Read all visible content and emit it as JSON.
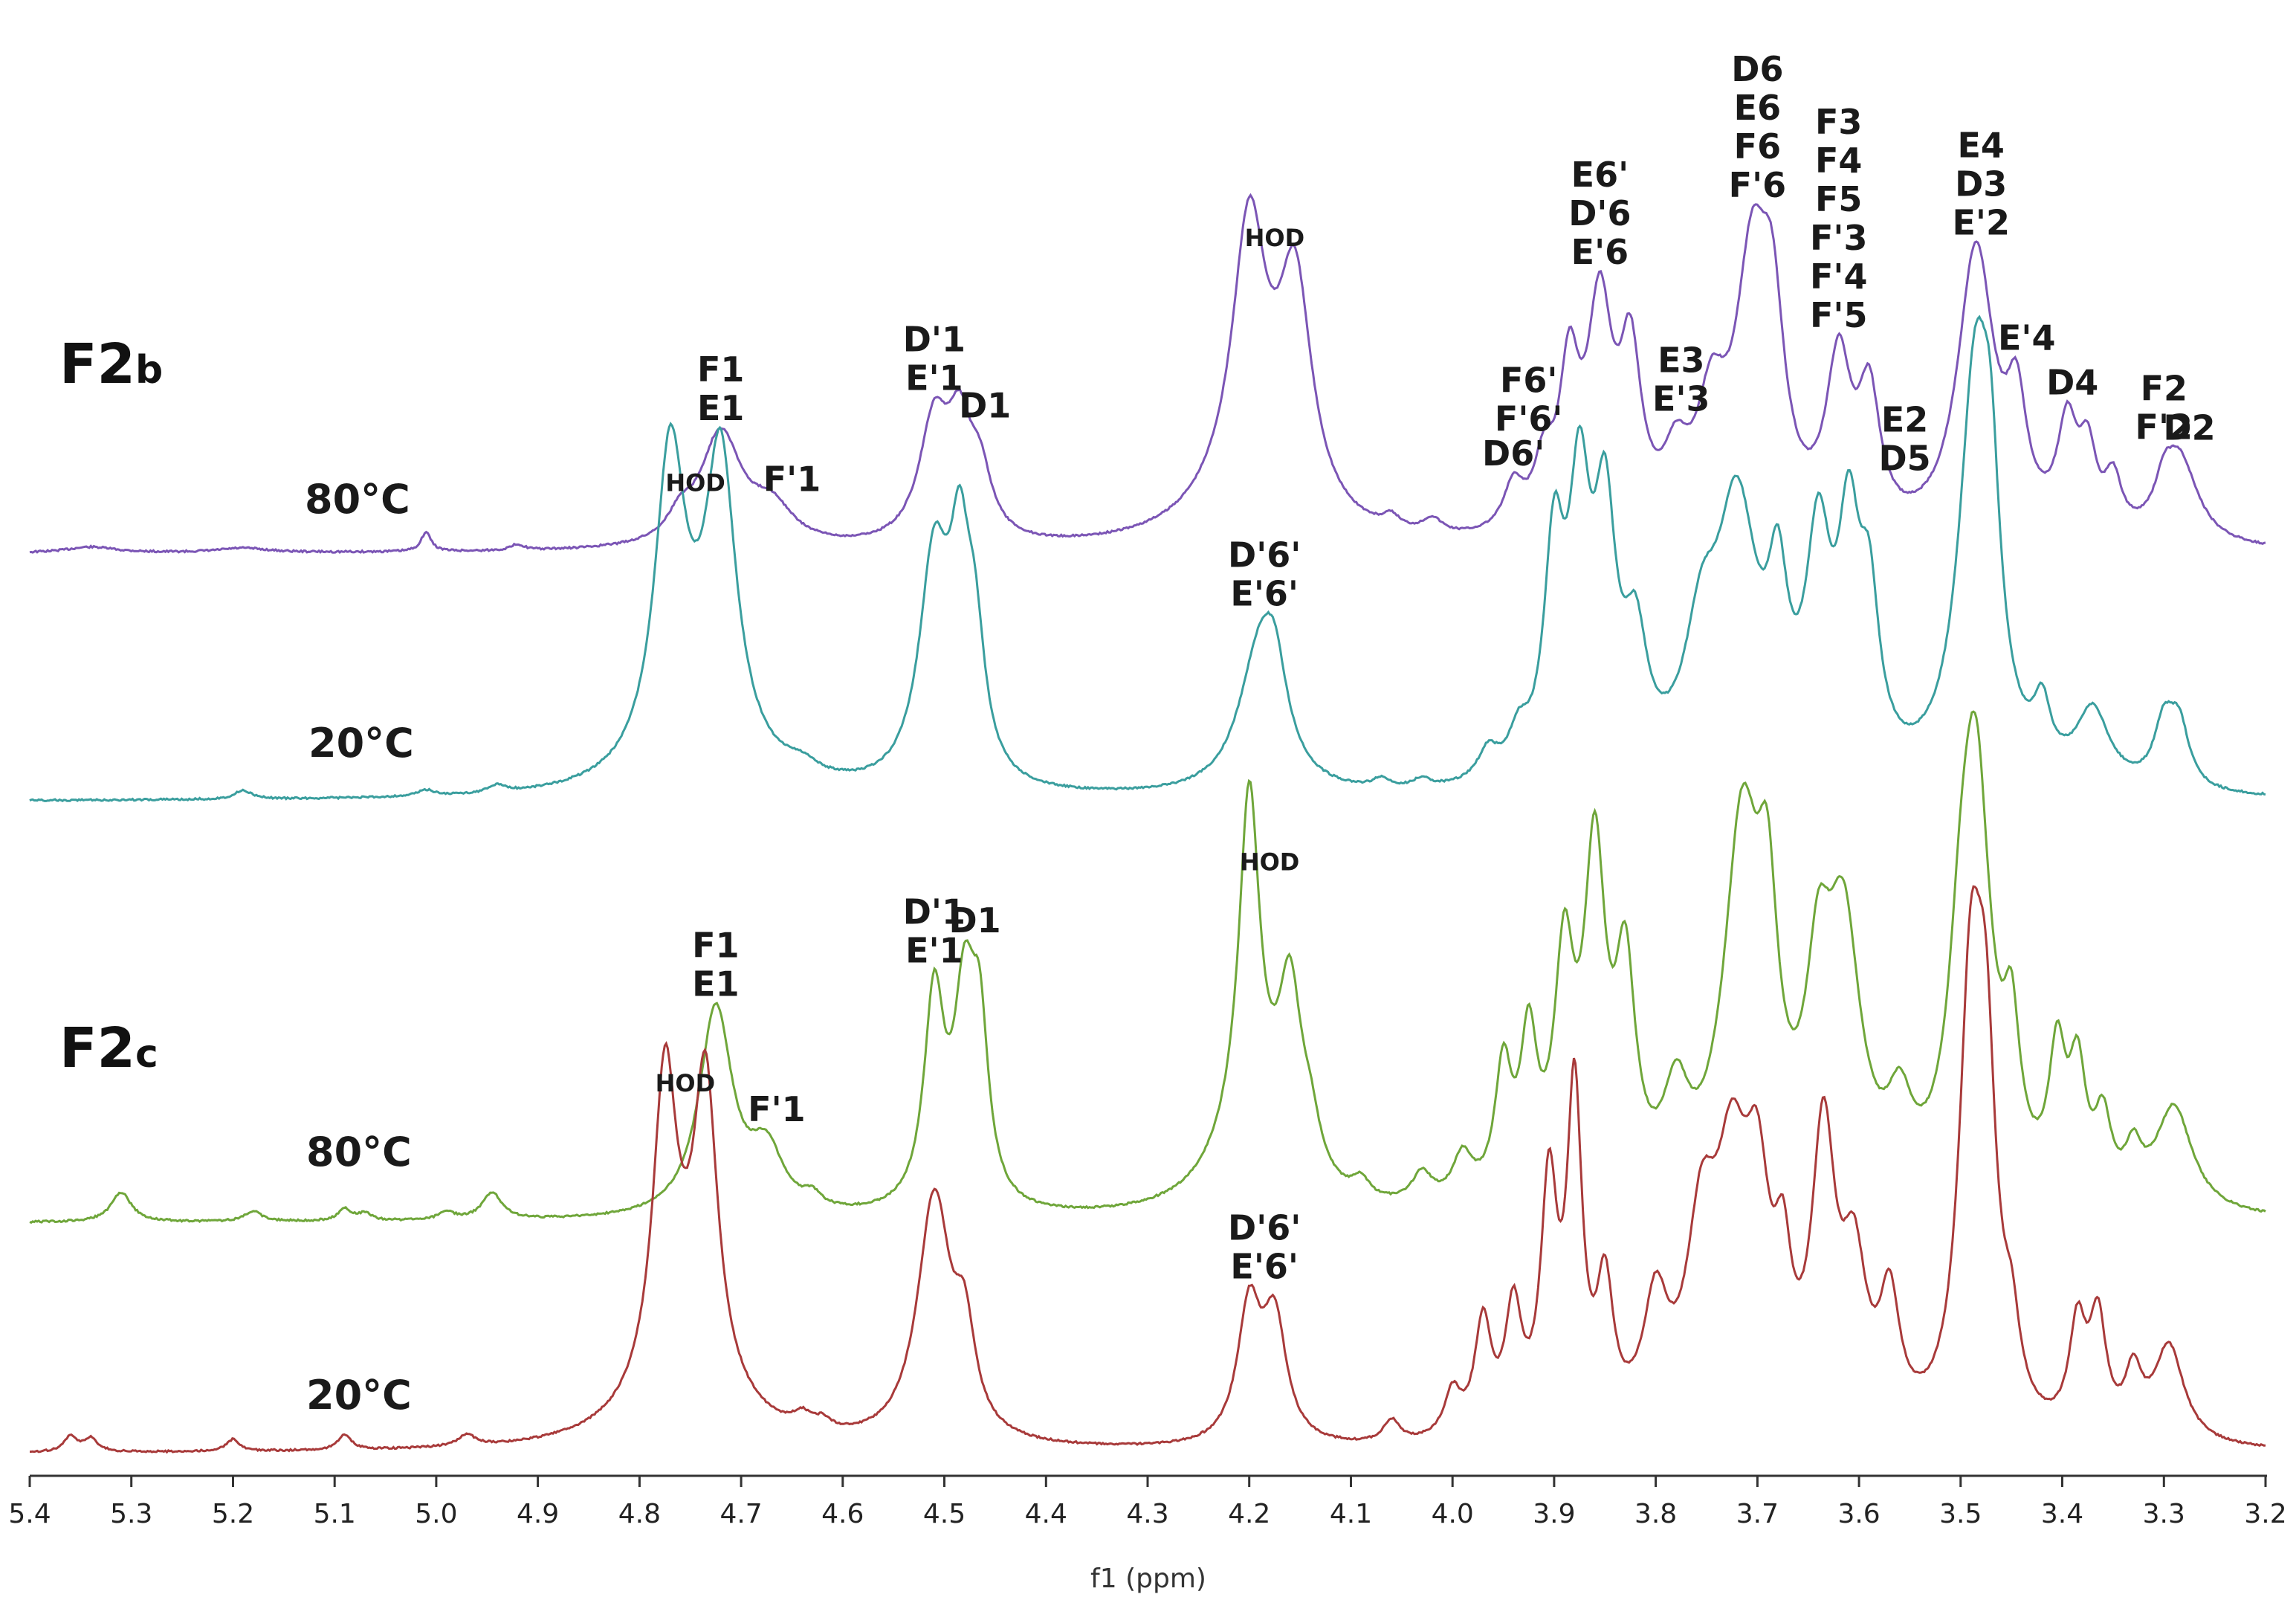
{
  "chart_data": {
    "type": "line",
    "title": "",
    "xlabel": "f1 (ppm)",
    "ylabel": "",
    "xlim": [
      5.4,
      3.2
    ],
    "x_reversed": true,
    "x_ticks": [
      "5.4",
      "5.3",
      "5.2",
      "5.1",
      "5.0",
      "4.9",
      "4.8",
      "4.7",
      "4.6",
      "4.5",
      "4.4",
      "4.3",
      "4.2",
      "4.1",
      "4.0",
      "3.9",
      "3.8",
      "3.7",
      "3.6",
      "3.5",
      "3.4",
      "3.3",
      "3.2"
    ],
    "groups": [
      {
        "label_main": "F2",
        "label_sub": "b"
      },
      {
        "label_main": "F2",
        "label_sub": "c"
      }
    ],
    "series": [
      {
        "name": "F2b 80°C",
        "temperature": "80°C",
        "color": "#7b55b5",
        "baseline": 0.0,
        "peaks": [
          [
            5.34,
            0.4,
            0.03
          ],
          [
            5.19,
            0.3,
            0.03
          ],
          [
            5.01,
            1.3,
            0.006
          ],
          [
            4.92,
            0.4,
            0.008
          ],
          [
            4.76,
            1.5,
            0.015
          ],
          [
            4.72,
            7.6,
            0.025
          ],
          [
            4.67,
            2.4,
            0.025
          ],
          [
            4.51,
            8.0,
            0.018
          ],
          [
            4.485,
            6.5,
            0.014
          ],
          [
            4.465,
            4.0,
            0.014
          ],
          [
            4.2,
            3.8,
            0.06
          ],
          [
            4.2,
            17.5,
            0.02
          ],
          [
            4.155,
            15.0,
            0.02
          ],
          [
            4.06,
            0.8,
            0.01
          ],
          [
            4.02,
            1.0,
            0.012
          ],
          [
            3.94,
            3.0,
            0.012
          ],
          [
            3.91,
            4.0,
            0.012
          ],
          [
            3.885,
            10.0,
            0.012
          ],
          [
            3.855,
            14.5,
            0.015
          ],
          [
            3.825,
            11.0,
            0.013
          ],
          [
            3.78,
            4.0,
            0.015
          ],
          [
            3.745,
            7.5,
            0.018
          ],
          [
            3.705,
            17.0,
            0.02
          ],
          [
            3.685,
            11.0,
            0.014
          ],
          [
            3.62,
            11.0,
            0.015
          ],
          [
            3.59,
            8.5,
            0.013
          ],
          [
            3.485,
            19.5,
            0.022
          ],
          [
            3.445,
            7.5,
            0.012
          ],
          [
            3.395,
            7.0,
            0.012
          ],
          [
            3.375,
            5.0,
            0.01
          ],
          [
            3.35,
            3.5,
            0.01
          ],
          [
            3.285,
            5.8,
            0.022
          ],
          [
            3.3,
            2.0,
            0.01
          ]
        ],
        "annotations": [
          {
            "lines": [
              "F1",
              "E1"
            ],
            "ppm": 4.72
          },
          {
            "lines": [
              "F'1"
            ],
            "ppm": 4.65
          },
          {
            "lines": [
              "D'1",
              "E'1"
            ],
            "ppm": 4.51
          },
          {
            "lines": [
              "D1"
            ],
            "ppm": 4.46
          },
          {
            "lines": [
              "HOD"
            ],
            "ppm": 4.175
          },
          {
            "lines": [
              "F6'",
              "F'6'"
            ],
            "ppm": 3.925
          },
          {
            "lines": [
              "D6'"
            ],
            "ppm": 3.94
          },
          {
            "lines": [
              "E6'",
              "D'6",
              "E'6"
            ],
            "ppm": 3.855
          },
          {
            "lines": [
              "E3",
              "E'3"
            ],
            "ppm": 3.775
          },
          {
            "lines": [
              "D6",
              "E6",
              "F6",
              "F'6"
            ],
            "ppm": 3.7
          },
          {
            "lines": [
              "F3",
              "F4",
              "F5",
              "F'3",
              "F'4",
              "F'5"
            ],
            "ppm": 3.62
          },
          {
            "lines": [
              "E2",
              "D5"
            ],
            "ppm": 3.555
          },
          {
            "lines": [
              "E4",
              "D3",
              "E'2"
            ],
            "ppm": 3.48
          },
          {
            "lines": [
              "E'4"
            ],
            "ppm": 3.435
          },
          {
            "lines": [
              "D4"
            ],
            "ppm": 3.39
          },
          {
            "lines": [
              "F2",
              "F'2"
            ],
            "ppm": 3.3
          },
          {
            "lines": [
              "D2"
            ],
            "ppm": 3.275
          }
        ]
      },
      {
        "name": "F2b 20°C",
        "temperature": "20°C",
        "color": "#3a9e9e",
        "baseline": 0.0,
        "peaks": [
          [
            5.19,
            0.6,
            0.01
          ],
          [
            5.01,
            0.4,
            0.01
          ],
          [
            4.94,
            0.5,
            0.01
          ],
          [
            4.77,
            20.0,
            0.018
          ],
          [
            4.72,
            19.0,
            0.018
          ],
          [
            4.74,
            4.0,
            0.05
          ],
          [
            4.64,
            0.8,
            0.02
          ],
          [
            4.51,
            15.0,
            0.018
          ],
          [
            4.485,
            12.5,
            0.012
          ],
          [
            4.47,
            8.0,
            0.012
          ],
          [
            4.19,
            9.0,
            0.025
          ],
          [
            4.175,
            5.0,
            0.015
          ],
          [
            4.07,
            0.6,
            0.01
          ],
          [
            4.03,
            0.6,
            0.01
          ],
          [
            3.965,
            2.0,
            0.012
          ],
          [
            3.935,
            2.5,
            0.012
          ],
          [
            3.9,
            14.5,
            0.012
          ],
          [
            3.875,
            17.5,
            0.013
          ],
          [
            3.85,
            16.0,
            0.013
          ],
          [
            3.82,
            8.0,
            0.014
          ],
          [
            3.755,
            8.0,
            0.02
          ],
          [
            3.72,
            17.5,
            0.025
          ],
          [
            3.68,
            10.0,
            0.012
          ],
          [
            3.64,
            14.5,
            0.015
          ],
          [
            3.61,
            14.5,
            0.013
          ],
          [
            3.59,
            10.0,
            0.012
          ],
          [
            3.485,
            28.0,
            0.02
          ],
          [
            3.47,
            10.0,
            0.01
          ],
          [
            3.42,
            4.0,
            0.01
          ],
          [
            3.37,
            5.0,
            0.02
          ],
          [
            3.3,
            4.0,
            0.012
          ],
          [
            3.285,
            4.0,
            0.012
          ]
        ],
        "annotations": [
          {
            "lines": [
              "HOD"
            ],
            "ppm": 4.745
          },
          {
            "lines": [
              "D'6'",
              "E'6'"
            ],
            "ppm": 4.185
          }
        ]
      },
      {
        "name": "F2c 80°C",
        "temperature": "80°C",
        "color": "#6fa63a",
        "baseline": 0.0,
        "peaks": [
          [
            5.31,
            2.0,
            0.012
          ],
          [
            5.18,
            0.7,
            0.01
          ],
          [
            5.09,
            0.8,
            0.008
          ],
          [
            5.07,
            0.5,
            0.008
          ],
          [
            4.99,
            0.5,
            0.01
          ],
          [
            4.945,
            1.8,
            0.012
          ],
          [
            4.725,
            14.0,
            0.02
          ],
          [
            4.675,
            4.0,
            0.02
          ],
          [
            4.63,
            0.8,
            0.01
          ],
          [
            4.51,
            14.0,
            0.012
          ],
          [
            4.48,
            13.5,
            0.013
          ],
          [
            4.465,
            10.0,
            0.01
          ],
          [
            4.2,
            6.0,
            0.04
          ],
          [
            4.2,
            22.0,
            0.012
          ],
          [
            4.16,
            12.0,
            0.014
          ],
          [
            4.14,
            3.0,
            0.012
          ],
          [
            4.09,
            1.2,
            0.01
          ],
          [
            4.03,
            2.0,
            0.012
          ],
          [
            3.99,
            3.0,
            0.012
          ],
          [
            3.95,
            8.5,
            0.01
          ],
          [
            3.925,
            10.0,
            0.01
          ],
          [
            3.89,
            15.0,
            0.012
          ],
          [
            3.86,
            22.0,
            0.013
          ],
          [
            3.83,
            14.0,
            0.012
          ],
          [
            3.78,
            6.0,
            0.015
          ],
          [
            3.715,
            24.5,
            0.022
          ],
          [
            3.69,
            14.0,
            0.012
          ],
          [
            3.64,
            12.0,
            0.015
          ],
          [
            3.615,
            17.0,
            0.02
          ],
          [
            3.56,
            5.0,
            0.015
          ],
          [
            3.5,
            10.0,
            0.015
          ],
          [
            3.485,
            27.0,
            0.018
          ],
          [
            3.45,
            9.0,
            0.01
          ],
          [
            3.405,
            9.0,
            0.01
          ],
          [
            3.385,
            8.0,
            0.01
          ],
          [
            3.36,
            5.0,
            0.01
          ],
          [
            3.33,
            3.0,
            0.01
          ],
          [
            3.29,
            7.0,
            0.022
          ]
        ],
        "annotations": [
          {
            "lines": [
              "F1",
              "E1"
            ],
            "ppm": 4.725
          },
          {
            "lines": [
              "F'1"
            ],
            "ppm": 4.665
          },
          {
            "lines": [
              "D'1",
              "E'1"
            ],
            "ppm": 4.51
          },
          {
            "lines": [
              "D1"
            ],
            "ppm": 4.47
          },
          {
            "lines": [
              "HOD"
            ],
            "ppm": 4.18
          }
        ]
      },
      {
        "name": "F2c 20°C",
        "temperature": "20°C",
        "color": "#a83a3a",
        "baseline": 0.0,
        "peaks": [
          [
            5.36,
            1.0,
            0.008
          ],
          [
            5.34,
            0.9,
            0.008
          ],
          [
            5.2,
            0.8,
            0.008
          ],
          [
            5.09,
            1.0,
            0.008
          ],
          [
            4.97,
            0.8,
            0.01
          ],
          [
            4.775,
            20.0,
            0.014
          ],
          [
            4.735,
            19.5,
            0.014
          ],
          [
            4.755,
            6.0,
            0.05
          ],
          [
            4.64,
            0.9,
            0.01
          ],
          [
            4.62,
            0.7,
            0.01
          ],
          [
            4.51,
            16.5,
            0.02
          ],
          [
            4.48,
            6.0,
            0.012
          ],
          [
            4.2,
            9.0,
            0.014
          ],
          [
            4.175,
            8.0,
            0.014
          ],
          [
            4.06,
            1.5,
            0.01
          ],
          [
            4.0,
            3.0,
            0.01
          ],
          [
            3.97,
            7.5,
            0.01
          ],
          [
            3.94,
            8.0,
            0.01
          ],
          [
            3.905,
            16.0,
            0.01
          ],
          [
            3.88,
            22.0,
            0.009
          ],
          [
            3.85,
            9.0,
            0.01
          ],
          [
            3.8,
            8.0,
            0.015
          ],
          [
            3.755,
            12.0,
            0.018
          ],
          [
            3.725,
            15.5,
            0.02
          ],
          [
            3.7,
            13.0,
            0.015
          ],
          [
            3.675,
            8.0,
            0.01
          ],
          [
            3.635,
            19.0,
            0.014
          ],
          [
            3.605,
            10.0,
            0.015
          ],
          [
            3.57,
            8.0,
            0.012
          ],
          [
            3.49,
            28.0,
            0.014
          ],
          [
            3.475,
            20.0,
            0.012
          ],
          [
            3.45,
            5.0,
            0.01
          ],
          [
            3.385,
            7.0,
            0.01
          ],
          [
            3.365,
            7.5,
            0.01
          ],
          [
            3.33,
            4.0,
            0.01
          ],
          [
            3.295,
            6.5,
            0.018
          ]
        ],
        "annotations": [
          {
            "lines": [
              "HOD"
            ],
            "ppm": 4.755
          },
          {
            "lines": [
              "D'6'",
              "E'6'"
            ],
            "ppm": 4.185
          }
        ]
      }
    ]
  }
}
